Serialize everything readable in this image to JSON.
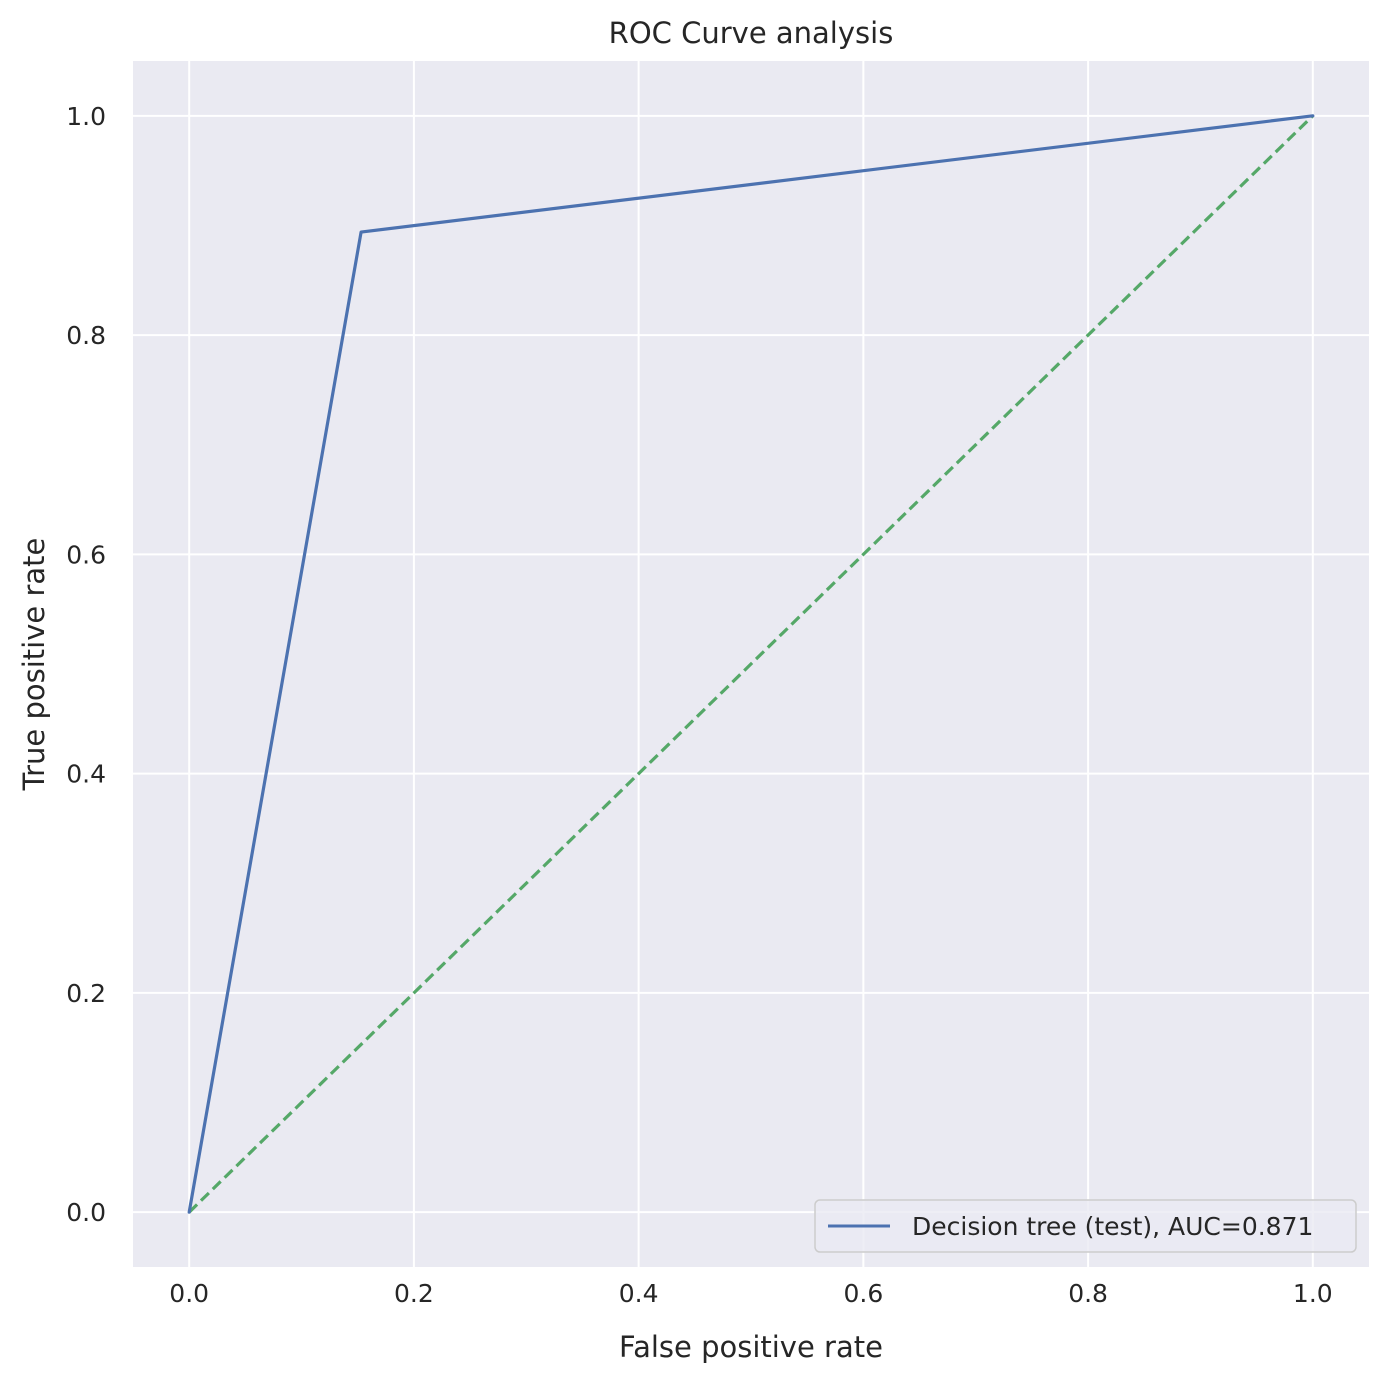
{
  "chart_data": {
    "type": "line",
    "title": "ROC Curve analysis",
    "xlabel": "False positive rate",
    "ylabel": "True positive rate",
    "xlim": [
      -0.05,
      1.05
    ],
    "ylim": [
      -0.05,
      1.05
    ],
    "xticks": [
      0.0,
      0.2,
      0.4,
      0.6,
      0.8,
      1.0
    ],
    "yticks": [
      0.0,
      0.2,
      0.4,
      0.6,
      0.8,
      1.0
    ],
    "xtick_labels": [
      "0.0",
      "0.2",
      "0.4",
      "0.6",
      "0.8",
      "1.0"
    ],
    "ytick_labels": [
      "0.0",
      "0.2",
      "0.4",
      "0.6",
      "0.8",
      "1.0"
    ],
    "grid": true,
    "legend_position": "lower right",
    "series": [
      {
        "name": "Decision tree (test), AUC=0.871",
        "x": [
          0.0,
          0.153,
          1.0
        ],
        "y": [
          0.0,
          0.894,
          1.0
        ],
        "color": "#4c72b0",
        "style": "solid",
        "in_legend": true
      },
      {
        "x": [
          0.0,
          1.0
        ],
        "y": [
          0.0,
          1.0
        ],
        "color": "#55a868",
        "style": "dashed",
        "in_legend": false
      }
    ]
  },
  "colors": {
    "plot_background": "#eaeaf2",
    "grid": "#ffffff",
    "text": "#262626"
  }
}
